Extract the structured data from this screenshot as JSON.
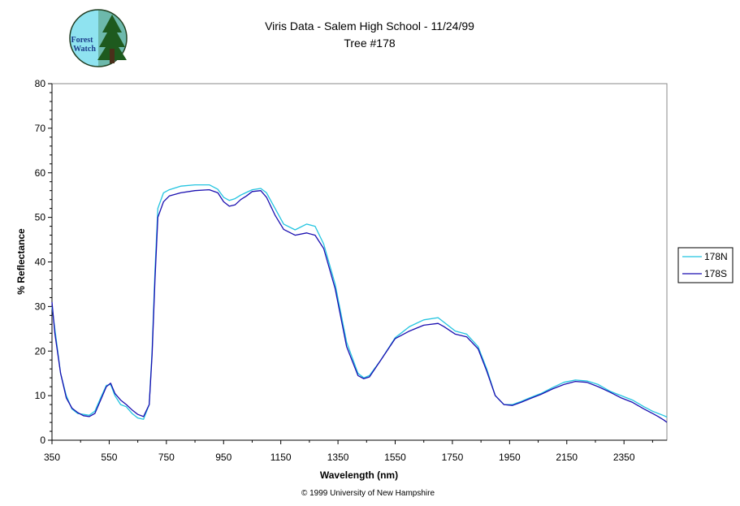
{
  "chart_data": {
    "type": "line",
    "title": "Viris Data - Salem High School - 11/24/99",
    "subtitle": "Tree #178",
    "xlabel": "Wavelength (nm)",
    "ylabel": "% Reflectance",
    "xlim": [
      350,
      2500
    ],
    "ylim": [
      0,
      80
    ],
    "xticks": [
      "350",
      "550",
      "750",
      "950",
      "1150",
      "1350",
      "1550",
      "1750",
      "1950",
      "2150",
      "2350"
    ],
    "yticks": [
      "0",
      "10",
      "20",
      "30",
      "40",
      "50",
      "60",
      "70",
      "80"
    ],
    "grid": false,
    "legend_position": "right",
    "series": [
      {
        "name": "178N",
        "color": "#22c4e0",
        "x": [
          350,
          360,
          380,
          400,
          420,
          440,
          460,
          480,
          500,
          520,
          540,
          555,
          570,
          590,
          610,
          630,
          650,
          670,
          690,
          700,
          710,
          720,
          740,
          760,
          800,
          850,
          900,
          930,
          950,
          970,
          990,
          1010,
          1030,
          1050,
          1080,
          1100,
          1130,
          1160,
          1200,
          1240,
          1270,
          1300,
          1340,
          1380,
          1420,
          1440,
          1460,
          1500,
          1550,
          1600,
          1650,
          1700,
          1720,
          1760,
          1800,
          1840,
          1870,
          1900,
          1930,
          1960,
          1990,
          2020,
          2060,
          2100,
          2140,
          2180,
          2220,
          2260,
          2300,
          2340,
          2380,
          2420,
          2450,
          2470,
          2490,
          2500
        ],
        "y": [
          30,
          25,
          15,
          10,
          7,
          6,
          5.8,
          5.6,
          6.5,
          9.5,
          12.3,
          12.5,
          10,
          8,
          7.5,
          6,
          5,
          4.7,
          8,
          20,
          38,
          52,
          55.5,
          56.2,
          57,
          57.3,
          57.3,
          56.3,
          54.5,
          53.8,
          54.2,
          55,
          55.6,
          56.2,
          56.5,
          55.5,
          52,
          48.5,
          47.2,
          48.5,
          48,
          44,
          35,
          22,
          15,
          14,
          14.5,
          18,
          23,
          25.5,
          27,
          27.5,
          26.5,
          24.5,
          23.8,
          21,
          16,
          10,
          8,
          8,
          8.7,
          9.5,
          10.5,
          11.8,
          13,
          13.5,
          13.3,
          12.5,
          11,
          10,
          9,
          7.5,
          6.5,
          6,
          5.5,
          5.2
        ]
      },
      {
        "name": "178S",
        "color": "#1a0fb0",
        "x": [
          350,
          360,
          380,
          400,
          420,
          440,
          460,
          480,
          500,
          520,
          540,
          555,
          570,
          590,
          610,
          630,
          650,
          670,
          690,
          700,
          710,
          720,
          740,
          760,
          800,
          850,
          900,
          930,
          950,
          970,
          990,
          1010,
          1030,
          1050,
          1080,
          1100,
          1130,
          1160,
          1200,
          1240,
          1270,
          1300,
          1340,
          1380,
          1420,
          1440,
          1460,
          1500,
          1550,
          1600,
          1650,
          1700,
          1720,
          1760,
          1800,
          1840,
          1870,
          1900,
          1930,
          1960,
          1990,
          2020,
          2060,
          2100,
          2140,
          2180,
          2220,
          2260,
          2300,
          2340,
          2380,
          2420,
          2450,
          2470,
          2490,
          2500
        ],
        "y": [
          31,
          24,
          15,
          9.5,
          7.2,
          6.2,
          5.5,
          5.3,
          6,
          9,
          12,
          12.8,
          10.5,
          9,
          8,
          6.8,
          5.8,
          5.3,
          8,
          19,
          36,
          50,
          53.5,
          54.8,
          55.5,
          56,
          56.2,
          55.5,
          53.5,
          52.5,
          52.8,
          54,
          54.8,
          55.8,
          56,
          54.5,
          50.5,
          47.3,
          46,
          46.5,
          46,
          43,
          34,
          21,
          14.5,
          13.8,
          14.2,
          18,
          22.8,
          24.5,
          25.8,
          26.2,
          25.5,
          23.8,
          23.2,
          20.5,
          15.5,
          10,
          8,
          7.8,
          8.5,
          9.3,
          10.3,
          11.5,
          12.5,
          13.2,
          13,
          12,
          10.8,
          9.5,
          8.5,
          7,
          6,
          5.3,
          4.5,
          4
        ]
      }
    ],
    "credit": "© 1999 University of New Hampshire"
  },
  "logo": {
    "line1": "Forest",
    "line2": "Watch"
  }
}
